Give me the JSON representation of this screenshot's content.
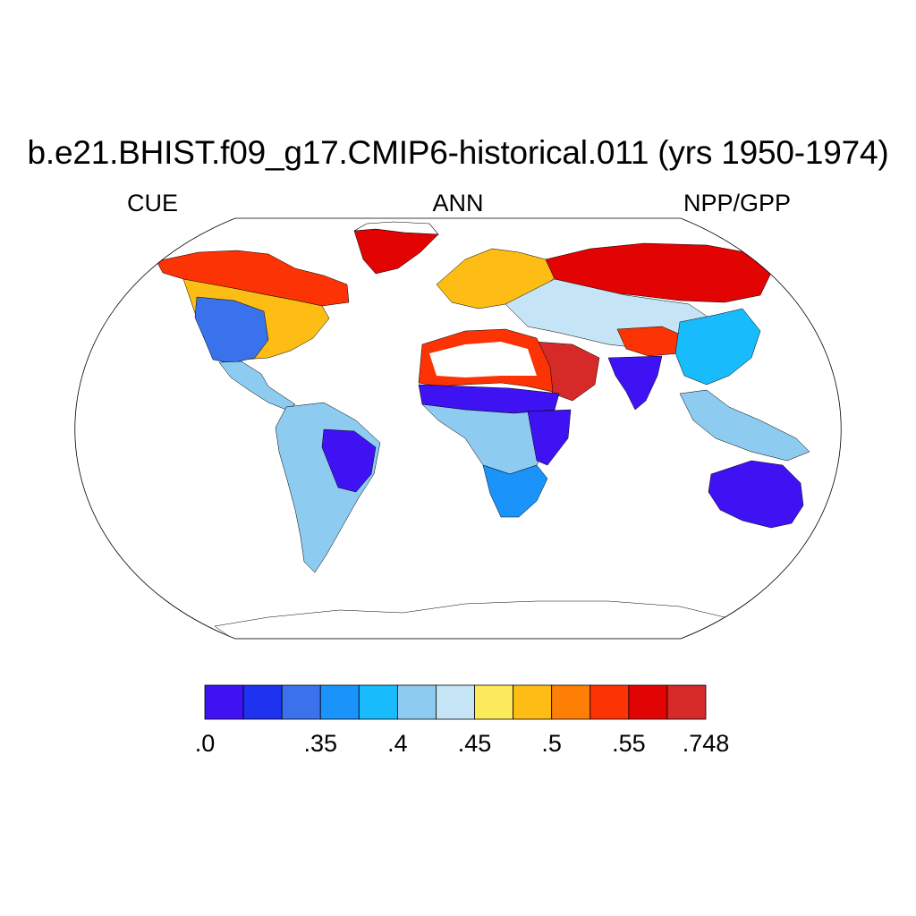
{
  "title": "b.e21.BHIST.f09_g17.CMIP6-historical.011 (yrs 1950-1974)",
  "subtitle_left": "CUE",
  "subtitle_center": "ANN",
  "subtitle_right": "NPP/GPP",
  "colorbar": {
    "colors": [
      "#3f12f4",
      "#1f32f0",
      "#3a72ec",
      "#1a94fb",
      "#18bcfc",
      "#8ecbf0",
      "#c5e5f7",
      "#fde95c",
      "#fdbd14",
      "#fd7f06",
      "#fc3304",
      "#e20303",
      "#d52a28"
    ],
    "tick_labels": [
      ".0",
      "",
      ".35",
      ".4",
      ".45",
      ".5",
      ".55",
      ".748"
    ],
    "tick_boundary_index": [
      0,
      2,
      3,
      5,
      7,
      9,
      11,
      13
    ]
  },
  "map": {
    "projection": "robinson",
    "regions": [
      {
        "name": "north-america-north",
        "color": "#fc3304"
      },
      {
        "name": "north-america-mid",
        "color": "#fdbd14"
      },
      {
        "name": "north-america-west",
        "color": "#3a72ec"
      },
      {
        "name": "central-america",
        "color": "#8ecbf0"
      },
      {
        "name": "south-america",
        "color": "#8ecbf0"
      },
      {
        "name": "amazon-east",
        "color": "#3f12f4"
      },
      {
        "name": "greenland-coast",
        "color": "#e20303"
      },
      {
        "name": "europe",
        "color": "#fdbd14"
      },
      {
        "name": "siberia",
        "color": "#e20303"
      },
      {
        "name": "central-asia",
        "color": "#c5e5f7"
      },
      {
        "name": "middle-east",
        "color": "#d52a28"
      },
      {
        "name": "sahara-edge",
        "color": "#fc3304"
      },
      {
        "name": "sahel",
        "color": "#3f12f4"
      },
      {
        "name": "central-africa",
        "color": "#8ecbf0"
      },
      {
        "name": "east-africa",
        "color": "#3f12f4"
      },
      {
        "name": "southern-africa",
        "color": "#1a94fb"
      },
      {
        "name": "india",
        "color": "#3f12f4"
      },
      {
        "name": "tibet",
        "color": "#fc3304"
      },
      {
        "name": "east-asia",
        "color": "#18bcfc"
      },
      {
        "name": "southeast-asia",
        "color": "#8ecbf0"
      },
      {
        "name": "australia",
        "color": "#3f12f4"
      },
      {
        "name": "antarctica",
        "color": "#ffffff"
      }
    ]
  }
}
